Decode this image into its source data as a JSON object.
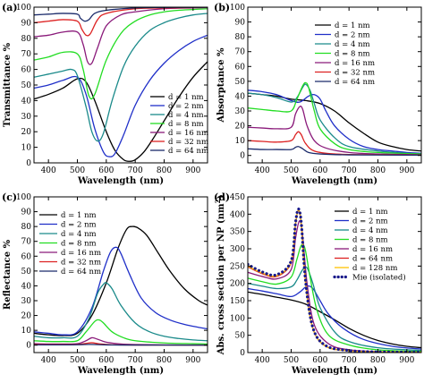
{
  "chart_data": [
    {
      "panel": "(a)",
      "type": "line",
      "xlabel": "Wavelength (nm)",
      "ylabel": "Transmittance %",
      "xlim": [
        350,
        950
      ],
      "ylim": [
        0,
        100
      ],
      "xticks": [
        400,
        500,
        600,
        700,
        800,
        900
      ],
      "yticks": [
        0,
        10,
        20,
        30,
        40,
        50,
        60,
        70,
        80,
        90,
        100
      ],
      "legend_position": "bottom-right",
      "series": [
        {
          "name": "d = 1 nm",
          "color": "#000000",
          "x": [
            350,
            400,
            450,
            500,
            530,
            560,
            600,
            630,
            660,
            680,
            700,
            730,
            760,
            800,
            850,
            900,
            950
          ],
          "y": [
            41,
            44,
            48,
            54,
            52,
            40,
            20,
            8,
            2,
            1,
            2,
            7,
            15,
            27,
            42,
            55,
            65
          ]
        },
        {
          "name": "d = 2 nm",
          "color": "#1f2fc8",
          "x": [
            350,
            400,
            450,
            500,
            530,
            560,
            590,
            610,
            630,
            660,
            700,
            750,
            800,
            850,
            900,
            950
          ],
          "y": [
            48,
            50,
            53,
            55,
            44,
            22,
            7,
            4,
            6,
            18,
            37,
            53,
            64,
            72,
            78,
            82
          ]
        },
        {
          "name": "d = 4 nm",
          "color": "#1a8a8a",
          "x": [
            350,
            400,
            450,
            480,
            500,
            530,
            550,
            570,
            590,
            620,
            660,
            700,
            750,
            800,
            850,
            900,
            950
          ],
          "y": [
            55,
            57,
            59,
            60,
            56,
            36,
            20,
            14,
            19,
            40,
            62,
            75,
            85,
            90,
            93,
            95,
            96
          ]
        },
        {
          "name": "d = 8 nm",
          "color": "#22dd22",
          "x": [
            350,
            400,
            450,
            500,
            520,
            540,
            560,
            600,
            650,
            700,
            750,
            800,
            850,
            900,
            950
          ],
          "y": [
            66,
            68,
            71,
            70,
            60,
            43,
            44,
            66,
            83,
            91,
            95,
            97,
            98,
            98.5,
            99
          ]
        },
        {
          "name": "d = 16 nm",
          "color": "#8a1a7a",
          "x": [
            350,
            400,
            450,
            500,
            520,
            535,
            550,
            570,
            600,
            650,
            700,
            800,
            900,
            950
          ],
          "y": [
            81,
            82,
            84,
            84,
            76,
            65,
            64,
            74,
            88,
            95,
            97,
            99,
            99.5,
            99.7
          ]
        },
        {
          "name": "d = 32 nm",
          "color": "#dd2222",
          "x": [
            350,
            400,
            450,
            500,
            515,
            530,
            545,
            570,
            600,
            700,
            800,
            900,
            950
          ],
          "y": [
            90,
            91,
            92,
            91,
            86,
            82,
            83,
            92,
            96,
            99,
            99.5,
            99.7,
            99.8
          ]
        },
        {
          "name": "d = 64 nm",
          "color": "#1a2a6a",
          "x": [
            350,
            400,
            450,
            500,
            510,
            525,
            540,
            560,
            600,
            700,
            800,
            900,
            950
          ],
          "y": [
            95,
            95.5,
            96,
            95.5,
            93,
            91,
            92,
            96,
            98,
            99.5,
            99.8,
            99.9,
            99.9
          ]
        }
      ]
    },
    {
      "panel": "(b)",
      "type": "line",
      "xlabel": "Wavelength (nm)",
      "ylabel": "Absorptance %",
      "xlim": [
        350,
        950
      ],
      "ylim": [
        -5,
        100
      ],
      "xticks": [
        400,
        500,
        600,
        700,
        800,
        900
      ],
      "yticks": [
        0,
        10,
        20,
        30,
        40,
        50,
        60,
        70,
        80,
        90,
        100
      ],
      "legend_position": "top-right",
      "series": [
        {
          "name": "d = 1 nm",
          "color": "#000000",
          "x": [
            350,
            400,
            450,
            500,
            550,
            600,
            650,
            700,
            750,
            800,
            850,
            900,
            950
          ],
          "y": [
            42,
            41,
            40,
            38,
            37,
            35,
            30,
            22,
            15,
            9,
            6,
            4,
            3
          ]
        },
        {
          "name": "d = 2 nm",
          "color": "#1f2fc8",
          "x": [
            350,
            400,
            450,
            500,
            530,
            560,
            580,
            600,
            620,
            650,
            700,
            750,
            800,
            850,
            900,
            950
          ],
          "y": [
            44,
            43,
            41,
            37,
            36,
            40,
            41,
            38,
            30,
            20,
            11,
            6,
            4,
            3,
            2,
            1.5
          ]
        },
        {
          "name": "d = 4 nm",
          "color": "#1a8a8a",
          "x": [
            350,
            400,
            450,
            500,
            520,
            540,
            550,
            565,
            580,
            600,
            650,
            700,
            800,
            900,
            950
          ],
          "y": [
            42,
            41,
            39,
            36,
            39,
            46,
            48,
            44,
            35,
            24,
            12,
            6,
            3,
            1.5,
            1
          ]
        },
        {
          "name": "d = 8 nm",
          "color": "#22dd22",
          "x": [
            350,
            400,
            450,
            500,
            520,
            540,
            550,
            560,
            580,
            600,
            650,
            700,
            800,
            950
          ],
          "y": [
            32,
            31,
            30,
            30,
            38,
            47,
            49,
            46,
            30,
            18,
            8,
            4,
            2,
            1
          ]
        },
        {
          "name": "d = 16 nm",
          "color": "#8a1a7a",
          "x": [
            350,
            400,
            450,
            500,
            515,
            530,
            540,
            555,
            580,
            620,
            700,
            800,
            950
          ],
          "y": [
            19,
            18.5,
            18,
            19,
            28,
            33,
            31,
            20,
            10,
            5,
            2,
            1,
            0.5
          ]
        },
        {
          "name": "d = 32 nm",
          "color": "#dd2222",
          "x": [
            350,
            400,
            450,
            500,
            515,
            525,
            535,
            550,
            580,
            650,
            800,
            950
          ],
          "y": [
            10,
            9.5,
            9,
            10,
            14,
            16,
            14,
            8,
            3,
            1,
            0.5,
            0.3
          ]
        },
        {
          "name": "d = 64 nm",
          "color": "#1a2a6a",
          "x": [
            350,
            400,
            450,
            500,
            515,
            525,
            540,
            560,
            600,
            700,
            950
          ],
          "y": [
            4.5,
            4,
            4,
            4,
            5.5,
            6,
            4.5,
            2,
            1,
            0.4,
            0.2
          ]
        }
      ]
    },
    {
      "panel": "(c)",
      "type": "line",
      "xlabel": "Wavelength (nm)",
      "ylabel": "Reflectance %",
      "xlim": [
        350,
        950
      ],
      "ylim": [
        -5,
        100
      ],
      "xticks": [
        400,
        500,
        600,
        700,
        800,
        900
      ],
      "yticks": [
        0,
        10,
        20,
        30,
        40,
        50,
        60,
        70,
        80,
        90,
        100
      ],
      "legend_position": "top-left",
      "series": [
        {
          "name": "d = 1 nm",
          "color": "#000000",
          "x": [
            350,
            400,
            450,
            500,
            550,
            600,
            640,
            670,
            690,
            710,
            740,
            780,
            820,
            870,
            920,
            950
          ],
          "y": [
            8,
            7,
            6.5,
            8,
            20,
            42,
            65,
            78,
            80,
            79,
            74,
            62,
            50,
            38,
            30,
            27
          ]
        },
        {
          "name": "d = 2 nm",
          "color": "#1f2fc8",
          "x": [
            350,
            400,
            450,
            500,
            550,
            590,
            615,
            635,
            650,
            680,
            720,
            770,
            820,
            870,
            920,
            950
          ],
          "y": [
            9,
            8,
            7,
            9,
            25,
            50,
            63,
            66,
            62,
            48,
            32,
            22,
            17,
            14,
            12,
            11
          ]
        },
        {
          "name": "d = 4 nm",
          "color": "#1a8a8a",
          "x": [
            350,
            400,
            450,
            500,
            540,
            570,
            590,
            600,
            620,
            650,
            700,
            750,
            800,
            850,
            900,
            950
          ],
          "y": [
            6,
            5,
            5,
            6,
            18,
            35,
            41,
            42,
            38,
            27,
            15,
            9,
            6,
            4.5,
            3.5,
            3
          ]
        },
        {
          "name": "d = 8 nm",
          "color": "#22dd22",
          "x": [
            350,
            400,
            450,
            500,
            530,
            560,
            575,
            590,
            620,
            660,
            700,
            800,
            900,
            950
          ],
          "y": [
            3,
            2.5,
            2.5,
            3,
            9,
            16,
            17,
            15,
            9,
            5,
            3,
            1.5,
            1,
            0.8
          ]
        },
        {
          "name": "d = 16 nm",
          "color": "#8a1a7a",
          "x": [
            350,
            400,
            450,
            500,
            530,
            550,
            570,
            600,
            650,
            700,
            800,
            950
          ],
          "y": [
            1,
            0.8,
            0.8,
            1,
            3,
            5,
            4,
            2,
            0.8,
            0.4,
            0.2,
            0.1
          ]
        },
        {
          "name": "d = 32 nm",
          "color": "#dd2222",
          "x": [
            350,
            400,
            450,
            500,
            530,
            550,
            580,
            620,
            700,
            950
          ],
          "y": [
            0.5,
            0.4,
            0.4,
            0.5,
            1.2,
            1.6,
            0.8,
            0.3,
            0.1,
            0
          ]
        },
        {
          "name": "d = 64 nm",
          "color": "#1a2a6a",
          "x": [
            350,
            450,
            500,
            540,
            580,
            650,
            950
          ],
          "y": [
            0.2,
            0.2,
            0.3,
            0.5,
            0.3,
            0.1,
            0
          ]
        }
      ]
    },
    {
      "panel": "(d)",
      "type": "line",
      "xlabel": "Wavelength (nm)",
      "ylabel": "Abs. cross section per NP (nm",
      "ylabel_sup": "2",
      "ylabel_close": ")",
      "xlim": [
        350,
        950
      ],
      "ylim": [
        0,
        450
      ],
      "xticks": [
        400,
        500,
        600,
        700,
        800,
        900
      ],
      "yticks": [
        0,
        50,
        100,
        150,
        200,
        250,
        300,
        350,
        400,
        450
      ],
      "legend_position": "top-right",
      "series": [
        {
          "name": "d = 1 nm",
          "color": "#000000",
          "x": [
            350,
            400,
            450,
            500,
            550,
            600,
            650,
            700,
            750,
            800,
            850,
            900,
            950
          ],
          "y": [
            175,
            168,
            160,
            152,
            140,
            118,
            95,
            70,
            50,
            35,
            25,
            18,
            14
          ]
        },
        {
          "name": "d = 2 nm",
          "color": "#1f2fc8",
          "x": [
            350,
            400,
            450,
            500,
            530,
            555,
            575,
            600,
            630,
            680,
            750,
            850,
            950
          ],
          "y": [
            185,
            178,
            170,
            162,
            175,
            192,
            185,
            150,
            110,
            70,
            38,
            18,
            10
          ]
        },
        {
          "name": "d = 4 nm",
          "color": "#1a8a8a",
          "x": [
            350,
            400,
            450,
            500,
            520,
            540,
            555,
            575,
            600,
            650,
            700,
            800,
            950
          ],
          "y": [
            200,
            192,
            185,
            190,
            210,
            240,
            245,
            200,
            130,
            60,
            32,
            14,
            6
          ]
        },
        {
          "name": "d = 8 nm",
          "color": "#22dd22",
          "x": [
            350,
            400,
            450,
            500,
            520,
            535,
            548,
            565,
            590,
            630,
            700,
            800,
            950
          ],
          "y": [
            215,
            205,
            198,
            218,
            270,
            310,
            300,
            220,
            120,
            50,
            22,
            8,
            3
          ]
        },
        {
          "name": "d = 16 nm",
          "color": "#8a1a7a",
          "x": [
            350,
            400,
            450,
            500,
            515,
            528,
            538,
            555,
            580,
            630,
            700,
            800,
            950
          ],
          "y": [
            232,
            220,
            213,
            240,
            330,
            380,
            350,
            200,
            80,
            25,
            8,
            3,
            1
          ]
        },
        {
          "name": "d = 64 nm",
          "color": "#dd2222",
          "x": [
            350,
            400,
            450,
            500,
            515,
            525,
            535,
            550,
            575,
            620,
            700,
            800,
            950
          ],
          "y": [
            248,
            228,
            220,
            260,
            370,
            410,
            370,
            200,
            70,
            18,
            5,
            2,
            1
          ]
        },
        {
          "name": "d = 128 nm",
          "color": "#ffc400",
          "x": [
            350,
            400,
            450,
            500,
            515,
            525,
            535,
            550,
            575,
            620,
            700,
            800,
            950
          ],
          "y": [
            250,
            230,
            222,
            262,
            372,
            412,
            372,
            200,
            70,
            18,
            5,
            2,
            1
          ]
        },
        {
          "name": "Mie (isolated)",
          "color": "#1a1a8a",
          "dotted": true,
          "x": [
            350,
            400,
            450,
            500,
            515,
            525,
            535,
            550,
            575,
            620,
            700,
            800,
            950
          ],
          "y": [
            255,
            233,
            225,
            265,
            375,
            415,
            375,
            205,
            72,
            20,
            6,
            2,
            1
          ]
        }
      ]
    }
  ]
}
